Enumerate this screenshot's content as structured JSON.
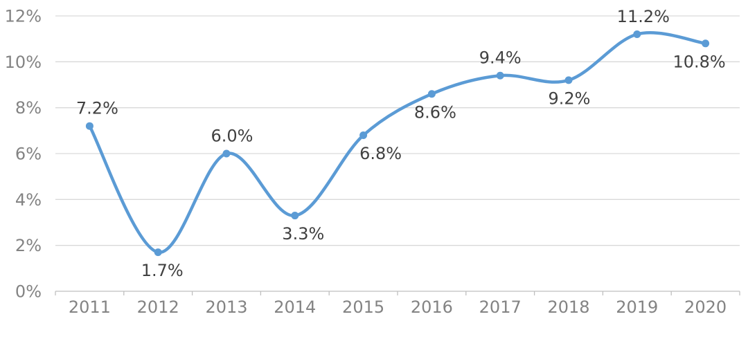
{
  "chart_data": {
    "type": "line",
    "title": "",
    "categories": [
      "2011",
      "2012",
      "2013",
      "2014",
      "2015",
      "2016",
      "2017",
      "2018",
      "2019",
      "2020"
    ],
    "series": [
      {
        "name": "percentage-series",
        "values": [
          7.2,
          1.7,
          6.0,
          3.3,
          6.8,
          8.6,
          9.4,
          9.2,
          11.2,
          10.8
        ]
      }
    ],
    "data_labels": [
      "7.2%",
      "1.7%",
      "6.0%",
      "3.3%",
      "6.8%",
      "8.6%",
      "9.4%",
      "9.2%",
      "11.2%",
      "10.8%"
    ],
    "label_placement": [
      {
        "pos": "above",
        "dx": 11
      },
      {
        "pos": "below",
        "dx": 6
      },
      {
        "pos": "above",
        "dx": 8
      },
      {
        "pos": "below",
        "dx": 12
      },
      {
        "pos": "below",
        "dx": 25
      },
      {
        "pos": "below",
        "dx": 5
      },
      {
        "pos": "above",
        "dx": 0
      },
      {
        "pos": "below",
        "dx": 1
      },
      {
        "pos": "above",
        "dx": 9
      },
      {
        "pos": "below",
        "dx": -9
      }
    ],
    "xlabel": "",
    "ylabel": "",
    "y_axis": {
      "tick_labels": [
        "0%",
        "2%",
        "4%",
        "6%",
        "8%",
        "10%",
        "12%"
      ],
      "tick_values": [
        0,
        2,
        4,
        6,
        8,
        10,
        12
      ],
      "min": 0,
      "max": 12
    },
    "grid": true,
    "legend_position": "none",
    "marker_shape": "circle",
    "line_smooth": true,
    "colors": {
      "line": "#5B9BD5",
      "marker": "#5B9BD5",
      "gridline": "#D9D9D9",
      "axis_line": "#BFBFBF",
      "tick_label": "#838383",
      "data_label": "#404040",
      "background": "#FFFFFF"
    }
  }
}
